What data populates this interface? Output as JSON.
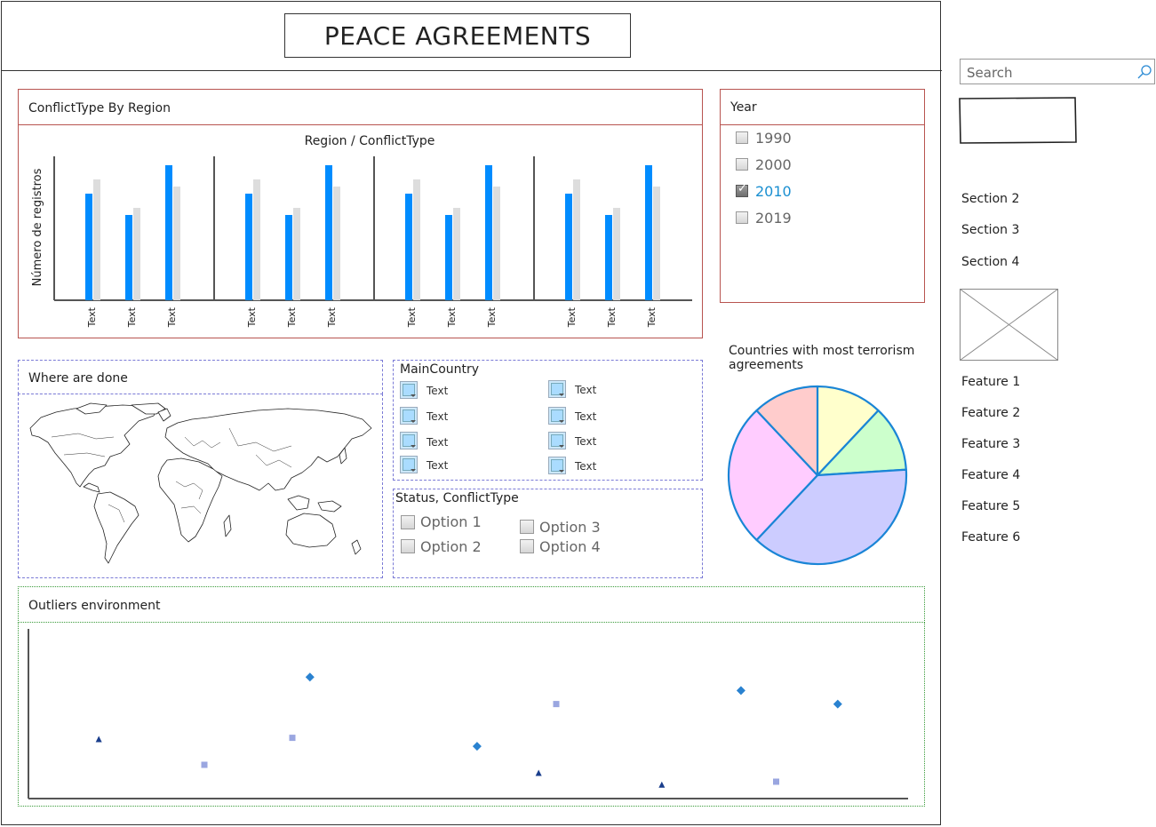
{
  "header": {
    "title": "PEACE AGREEMENTS"
  },
  "search": {
    "placeholder": "Search"
  },
  "sidebar": {
    "sections": [
      {
        "label": "Section 2"
      },
      {
        "label": "Section 3"
      },
      {
        "label": "Section 4"
      }
    ],
    "features": [
      {
        "label": "Feature 1"
      },
      {
        "label": "Feature 2"
      },
      {
        "label": "Feature 3"
      },
      {
        "label": "Feature 4"
      },
      {
        "label": "Feature 5"
      },
      {
        "label": "Feature 6"
      }
    ]
  },
  "conflict_panel": {
    "title": "ConflictType By Region"
  },
  "year_filter": {
    "title": "Year",
    "options": [
      {
        "label": "1990",
        "checked": false
      },
      {
        "label": "2000",
        "checked": false
      },
      {
        "label": "2010",
        "checked": true
      },
      {
        "label": "2019",
        "checked": false
      }
    ],
    "accent": "#1a8fd1"
  },
  "map_panel": {
    "title": "Where are done"
  },
  "main_country": {
    "title": "MainCountry",
    "items": [
      {
        "label": "Text"
      },
      {
        "label": "Text"
      },
      {
        "label": "Text"
      },
      {
        "label": "Text"
      },
      {
        "label": "Text"
      },
      {
        "label": "Text"
      },
      {
        "label": "Text"
      },
      {
        "label": "Text"
      }
    ]
  },
  "status_panel": {
    "title": "Status, ConflictType",
    "options": [
      {
        "label": "Option 1"
      },
      {
        "label": "Option 2"
      },
      {
        "label": "Option 3"
      },
      {
        "label": "Option 4"
      }
    ]
  },
  "outliers_panel": {
    "title": "Outliers environment"
  },
  "chart_data": [
    {
      "type": "bar",
      "title": "Region / ConflictType",
      "ylabel": "Número de registros",
      "groups": [
        {
          "categories": [
            "Text",
            "Text",
            "Text"
          ]
        },
        {
          "categories": [
            "Text",
            "Text",
            "Text"
          ]
        },
        {
          "categories": [
            "Text",
            "Text",
            "Text"
          ]
        },
        {
          "categories": [
            "Text",
            "Text",
            "Text"
          ]
        }
      ],
      "series": [
        {
          "values": [
            75,
            60,
            95
          ],
          "color": "#008cff"
        },
        {
          "values": [
            85,
            65,
            80
          ],
          "color": "#dddddd"
        }
      ],
      "ylim": [
        0,
        100
      ]
    },
    {
      "type": "pie",
      "title": "Countries with most terrorism agreements",
      "slices": [
        {
          "value": 12,
          "color": "#ffffcc"
        },
        {
          "value": 12,
          "color": "#ccffcc"
        },
        {
          "value": 38,
          "color": "#ccccff"
        },
        {
          "value": 26,
          "color": "#ffccff"
        },
        {
          "value": 12,
          "color": "#ffcccc"
        }
      ],
      "stroke": "#1a85d6"
    },
    {
      "type": "scatter",
      "xlim": [
        0,
        100
      ],
      "ylim": [
        0,
        100
      ],
      "series": [
        {
          "marker": "triangle",
          "color": "#1a3e8c",
          "points": [
            [
              8,
              35
            ],
            [
              58,
              15
            ],
            [
              72,
              8
            ]
          ]
        },
        {
          "marker": "square",
          "color": "#9aa6e0",
          "points": [
            [
              20,
              20
            ],
            [
              30,
              36
            ],
            [
              60,
              56
            ],
            [
              85,
              10
            ]
          ]
        },
        {
          "marker": "diamond",
          "color": "#2a82d0",
          "points": [
            [
              32,
              72
            ],
            [
              51,
              31
            ],
            [
              81,
              64
            ],
            [
              92,
              56
            ]
          ]
        }
      ]
    }
  ]
}
